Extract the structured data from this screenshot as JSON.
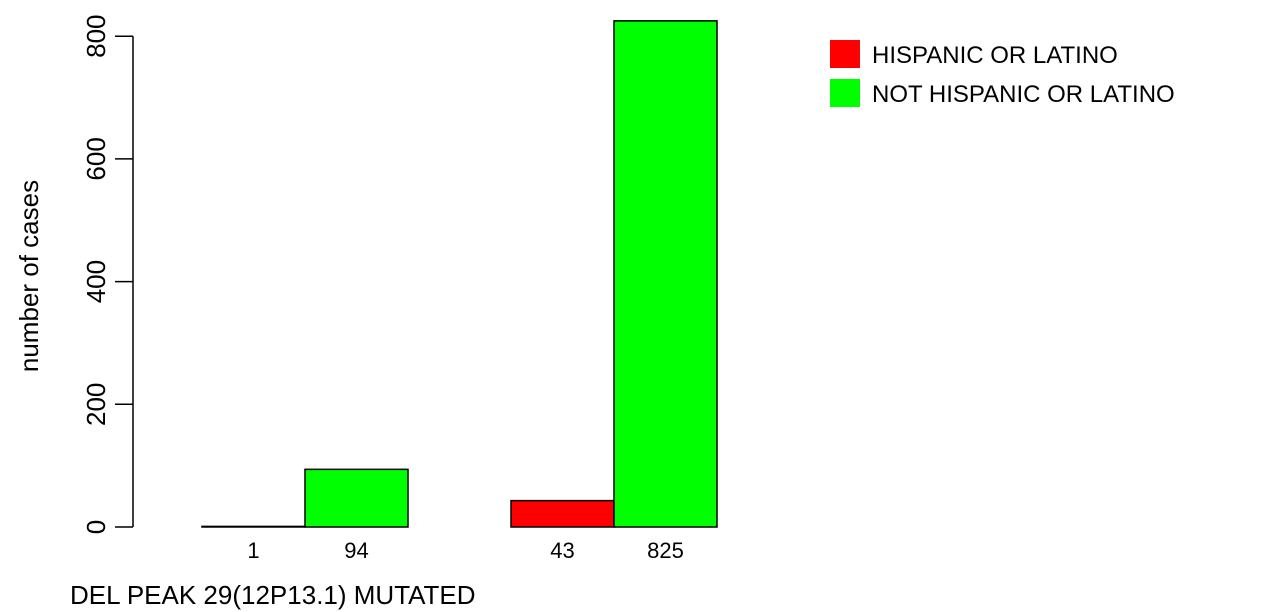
{
  "chart_data": {
    "type": "bar",
    "grouped": true,
    "title": "",
    "xlabel": "DEL PEAK 29(12P13.1) MUTATED",
    "ylabel": "number of cases",
    "ylim": [
      0,
      825
    ],
    "yticks": [
      0,
      200,
      400,
      600,
      800
    ],
    "yticks_text": [
      "0",
      "200",
      "400",
      "600",
      "800"
    ],
    "categories": [
      "",
      ""
    ],
    "series": [
      {
        "name": "HISPANIC OR LATINO",
        "color": "#ff0000",
        "values": [
          1,
          43
        ],
        "labels": [
          "1",
          "43"
        ]
      },
      {
        "name": "NOT HISPANIC OR LATINO",
        "color": "#00ff00",
        "values": [
          94,
          825
        ],
        "labels": [
          "94",
          "825"
        ]
      }
    ],
    "legend_position": "top-right",
    "grid": false
  }
}
